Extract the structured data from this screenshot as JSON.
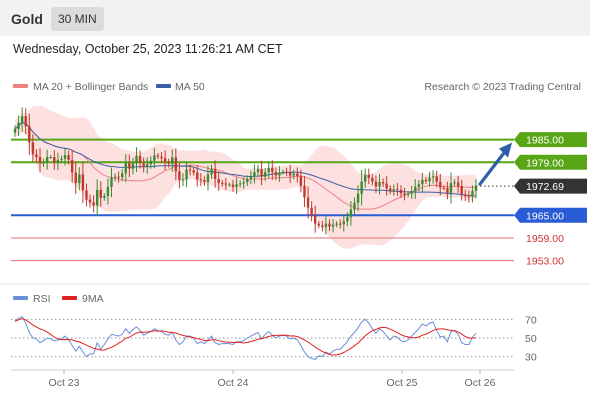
{
  "header": {
    "asset": "Gold",
    "timeframe": "30 MIN"
  },
  "datetime": "Wednesday, October 25, 2023 11:26:21 AM CET",
  "legend": {
    "ma20": "MA 20 + Bollinger Bands",
    "ma50": "MA 50",
    "rsi": "RSI",
    "ma9": "9MA",
    "credit": "Research © 2023 Trading Central"
  },
  "colors": {
    "up": "#3a8a2e",
    "down": "#c0392b",
    "ma20": "#f08080",
    "band": "#fde0e0",
    "ma50": "#3a5fa8",
    "resistance": "#58a615",
    "support": "#2a5cd6",
    "minor_support": "#e07070",
    "rsi": "#6a8fd8",
    "rsi_ma": "#e02020",
    "arrow": "#2e5fa8"
  },
  "chart_data": {
    "type": "candlestick",
    "x_labels": [
      "Oct 23",
      "Oct 24",
      "Oct 25",
      "Oct 26"
    ],
    "ylim": [
      1950,
      1996
    ],
    "current_price": "1972.69",
    "levels": [
      {
        "value": 1985.0,
        "label": "1985.00",
        "kind": "resistance"
      },
      {
        "value": 1979.0,
        "label": "1979.00",
        "kind": "resistance"
      },
      {
        "value": 1965.0,
        "label": "1965.00",
        "kind": "support"
      },
      {
        "value": 1959.0,
        "label": "1959.00",
        "kind": "minor"
      },
      {
        "value": 1953.0,
        "label": "1953.00",
        "kind": "minor"
      }
    ],
    "close": [
      1987.8,
      1989.5,
      1991.2,
      1988.5,
      1984.3,
      1981.1,
      1980.4,
      1978.7,
      1979.0,
      1980.4,
      1980.4,
      1978.8,
      1979.6,
      1979.9,
      1980.9,
      1979.6,
      1976.3,
      1973.5,
      1975.8,
      1971.6,
      1969.1,
      1968.4,
      1967.6,
      1971.7,
      1969.6,
      1970.1,
      1972.5,
      1974.9,
      1975.2,
      1975.0,
      1976.1,
      1978.8,
      1977.3,
      1978.7,
      1980.7,
      1978.8,
      1977.8,
      1978.5,
      1979.4,
      1980.8,
      1980.5,
      1980.1,
      1979.0,
      1978.6,
      1980.3,
      1976.6,
      1974.3,
      1974.5,
      1977.1,
      1976.9,
      1976.3,
      1974.5,
      1974.3,
      1973.8,
      1975.8,
      1977.2,
      1974.6,
      1973.5,
      1973.4,
      1973.1,
      1973.1,
      1972.5,
      1973.2,
      1973.4,
      1973.7,
      1974.6,
      1975.4,
      1976.4,
      1977.2,
      1975.2,
      1976.4,
      1977.5,
      1976.4,
      1975.5,
      1976.3,
      1976.5,
      1976.4,
      1975.5,
      1976.0,
      1975.3,
      1972.8,
      1969.7,
      1967.0,
      1965.1,
      1962.8,
      1962.3,
      1961.9,
      1962.8,
      1962.0,
      1962.5,
      1962.8,
      1962.6,
      1963.4,
      1964.5,
      1966.5,
      1968.3,
      1970.7,
      1973.9,
      1975.7,
      1974.9,
      1973.9,
      1972.6,
      1973.8,
      1973.4,
      1972.1,
      1971.4,
      1971.9,
      1971.7,
      1970.8,
      1970.4,
      1970.7,
      1971.4,
      1972.5,
      1973.2,
      1974.4,
      1974.0,
      1975.0,
      1975.3,
      1973.9,
      1972.3,
      1972.2,
      1970.9,
      1973.5,
      1973.7,
      1972.7,
      1970.5,
      1970.0,
      1969.9,
      1971.4,
      1972.7
    ],
    "open_first": 1986.8,
    "rsi_ylim": [
      20,
      80
    ],
    "rsi_levels": [
      "70",
      "50",
      "30"
    ],
    "rsi": [
      68,
      71,
      73,
      66,
      56,
      50,
      49,
      45,
      47,
      50,
      49,
      47,
      48,
      49,
      52,
      48,
      42,
      36,
      41,
      35,
      30,
      33,
      33,
      45,
      38,
      43,
      49,
      54,
      53,
      52,
      54,
      60,
      55,
      59,
      62,
      58,
      53,
      55,
      57,
      60,
      58,
      57,
      54,
      53,
      56,
      48,
      43,
      46,
      52,
      52,
      50,
      44,
      46,
      44,
      48,
      52,
      45,
      43,
      44,
      44,
      44,
      43,
      46,
      46,
      47,
      50,
      52,
      54,
      56,
      49,
      54,
      57,
      53,
      50,
      52,
      53,
      52,
      49,
      50,
      48,
      42,
      35,
      30,
      28,
      27,
      31,
      30,
      35,
      33,
      36,
      38,
      38,
      42,
      46,
      52,
      56,
      61,
      67,
      70,
      66,
      60,
      55,
      60,
      57,
      52,
      48,
      52,
      51,
      47,
      46,
      48,
      52,
      56,
      60,
      65,
      63,
      66,
      67,
      58,
      51,
      52,
      46,
      57,
      58,
      54,
      45,
      43,
      43,
      51,
      55
    ]
  }
}
